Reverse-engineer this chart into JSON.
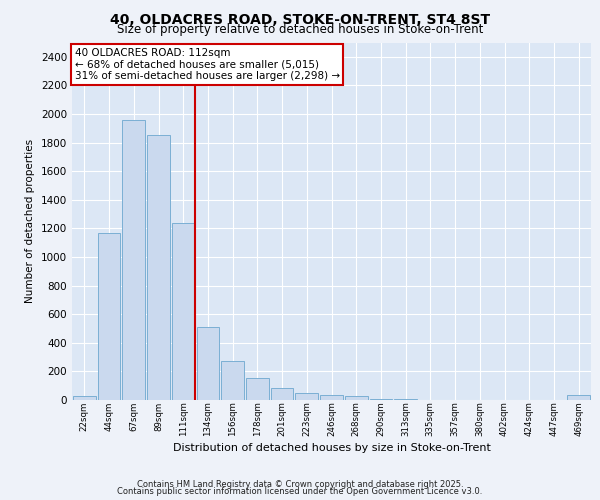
{
  "title_line1": "40, OLDACRES ROAD, STOKE-ON-TRENT, ST4 8ST",
  "title_line2": "Size of property relative to detached houses in Stoke-on-Trent",
  "xlabel": "Distribution of detached houses by size in Stoke-on-Trent",
  "ylabel": "Number of detached properties",
  "categories": [
    "22sqm",
    "44sqm",
    "67sqm",
    "89sqm",
    "111sqm",
    "134sqm",
    "156sqm",
    "178sqm",
    "201sqm",
    "223sqm",
    "246sqm",
    "268sqm",
    "290sqm",
    "313sqm",
    "335sqm",
    "357sqm",
    "380sqm",
    "402sqm",
    "424sqm",
    "447sqm",
    "469sqm"
  ],
  "values": [
    25,
    1170,
    1960,
    1855,
    1240,
    510,
    275,
    155,
    85,
    50,
    35,
    30,
    10,
    5,
    3,
    2,
    2,
    1,
    1,
    1,
    35
  ],
  "bar_color": "#cad9ee",
  "bar_edge_color": "#7bafd4",
  "vline_color": "#cc0000",
  "vline_index": 4,
  "annotation_text": "40 OLDACRES ROAD: 112sqm\n← 68% of detached houses are smaller (5,015)\n31% of semi-detached houses are larger (2,298) →",
  "annotation_box_facecolor": "#ffffff",
  "annotation_box_edgecolor": "#cc0000",
  "ylim": [
    0,
    2500
  ],
  "yticks": [
    0,
    200,
    400,
    600,
    800,
    1000,
    1200,
    1400,
    1600,
    1800,
    2000,
    2200,
    2400
  ],
  "bg_color": "#eef2f9",
  "plot_bg_color": "#dce7f5",
  "footer_line1": "Contains HM Land Registry data © Crown copyright and database right 2025.",
  "footer_line2": "Contains public sector information licensed under the Open Government Licence v3.0."
}
